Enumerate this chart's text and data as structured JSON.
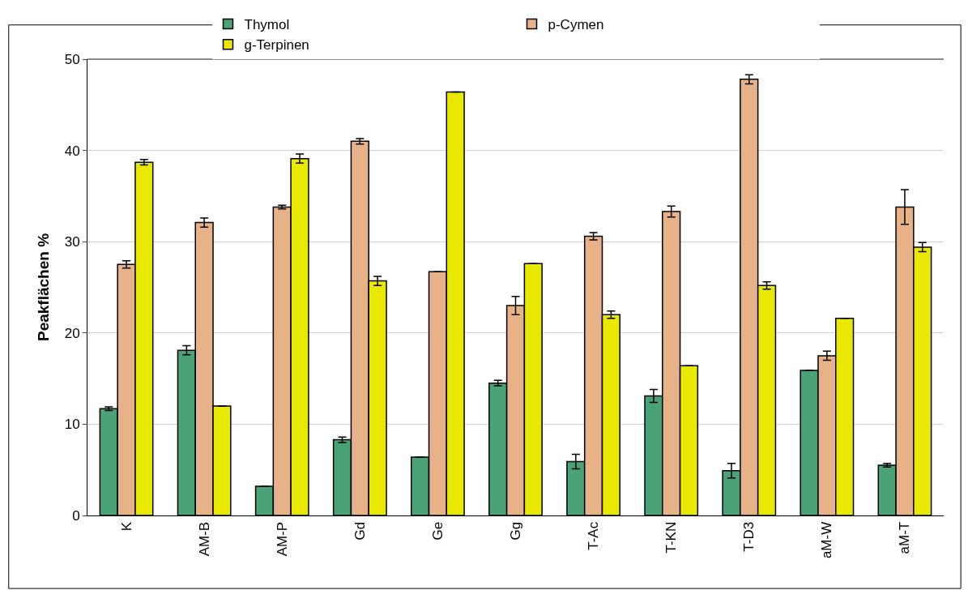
{
  "chart_data": {
    "type": "bar",
    "ylabel": "Peakflächen %",
    "categories": [
      "K",
      "AM-B",
      "AM-P",
      "Gd",
      "Ge",
      "Gg",
      "T-Ac",
      "T-KN",
      "T-D3",
      "aM-W",
      "aM-T"
    ],
    "series": [
      {
        "name": "Thymol",
        "color": "#4aa378",
        "values": [
          11.7,
          18.1,
          3.2,
          8.3,
          6.4,
          14.5,
          5.9,
          13.1,
          4.9,
          15.9,
          5.5
        ],
        "errors": [
          0.2,
          0.5,
          null,
          0.3,
          null,
          0.3,
          0.8,
          0.7,
          0.8,
          null,
          0.2
        ]
      },
      {
        "name": "p-Cymen",
        "color": "#e8b288",
        "values": [
          27.5,
          32.1,
          33.8,
          41.0,
          26.7,
          23.0,
          30.6,
          33.3,
          47.8,
          17.5,
          33.8
        ],
        "errors": [
          0.4,
          0.5,
          0.2,
          0.3,
          null,
          1.0,
          0.4,
          0.6,
          0.5,
          0.5,
          1.9
        ]
      },
      {
        "name": "g-Terpinen",
        "color": "#e8e800",
        "values": [
          38.7,
          12.0,
          39.1,
          25.7,
          46.4,
          27.6,
          22.0,
          16.4,
          25.2,
          21.6,
          29.4
        ],
        "errors": [
          0.3,
          null,
          0.5,
          0.5,
          null,
          null,
          0.4,
          null,
          0.4,
          null,
          0.5
        ]
      }
    ],
    "ylim": [
      0,
      50
    ],
    "yticks": [
      0,
      10,
      20,
      30,
      40,
      50
    ],
    "grid": "y",
    "legend": "top"
  }
}
